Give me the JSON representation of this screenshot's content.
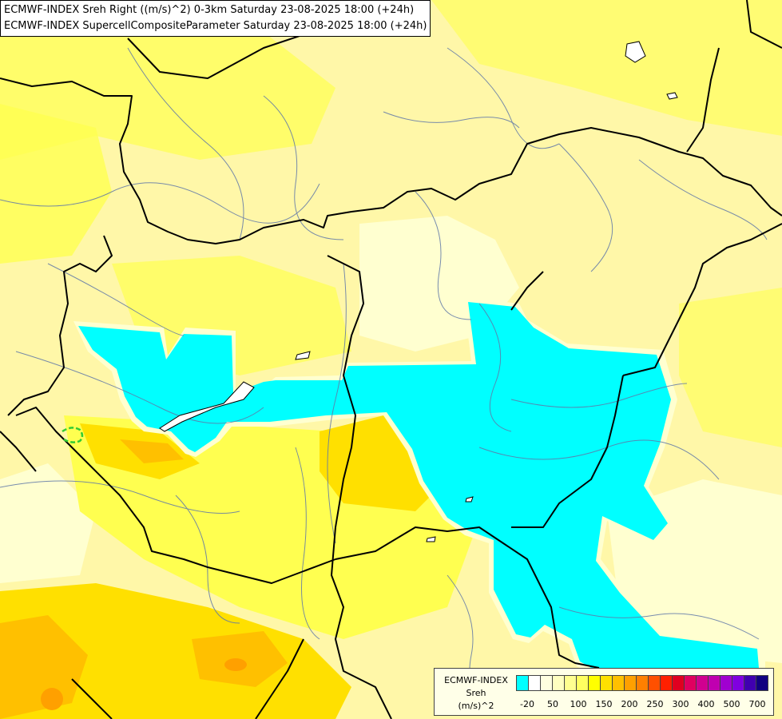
{
  "titles": {
    "line1": "ECMWF-INDEX Sreh Right ((m/s)^2) 0-3km Saturday 23-08-2025 18:00 (+24h)",
    "line2": "ECMWF-INDEX SupercellCompositeParameter Saturday 23-08-2025 18:00 (+24h)"
  },
  "legend": {
    "label1": "ECMWF-INDEX",
    "label2": "Sreh",
    "label3": "(m/s)^2",
    "colors": [
      "#00ffff",
      "#ffffff",
      "#ffffe0",
      "#ffffc0",
      "#ffff90",
      "#ffff60",
      "#ffff00",
      "#ffe000",
      "#ffc000",
      "#ffa000",
      "#ff8000",
      "#ff5000",
      "#ff2000",
      "#e00020",
      "#e00060",
      "#d00090",
      "#c000b0",
      "#a000d0",
      "#8000e0",
      "#4000b0",
      "#100080"
    ],
    "ticks": [
      "-20",
      "50",
      "100",
      "150",
      "200",
      "250",
      "300",
      "400",
      "500",
      "700"
    ]
  },
  "palette": {
    "base": "#fff7a8",
    "yellow": "#ffff50",
    "gold": "#ffe000",
    "orange": "#ffc000",
    "dark_orange": "#ffa000",
    "cyan": "#00ffff",
    "pale": "#ffffd0",
    "border": "#000000",
    "river": "#6078a8",
    "green_marker": "#33cc33"
  }
}
